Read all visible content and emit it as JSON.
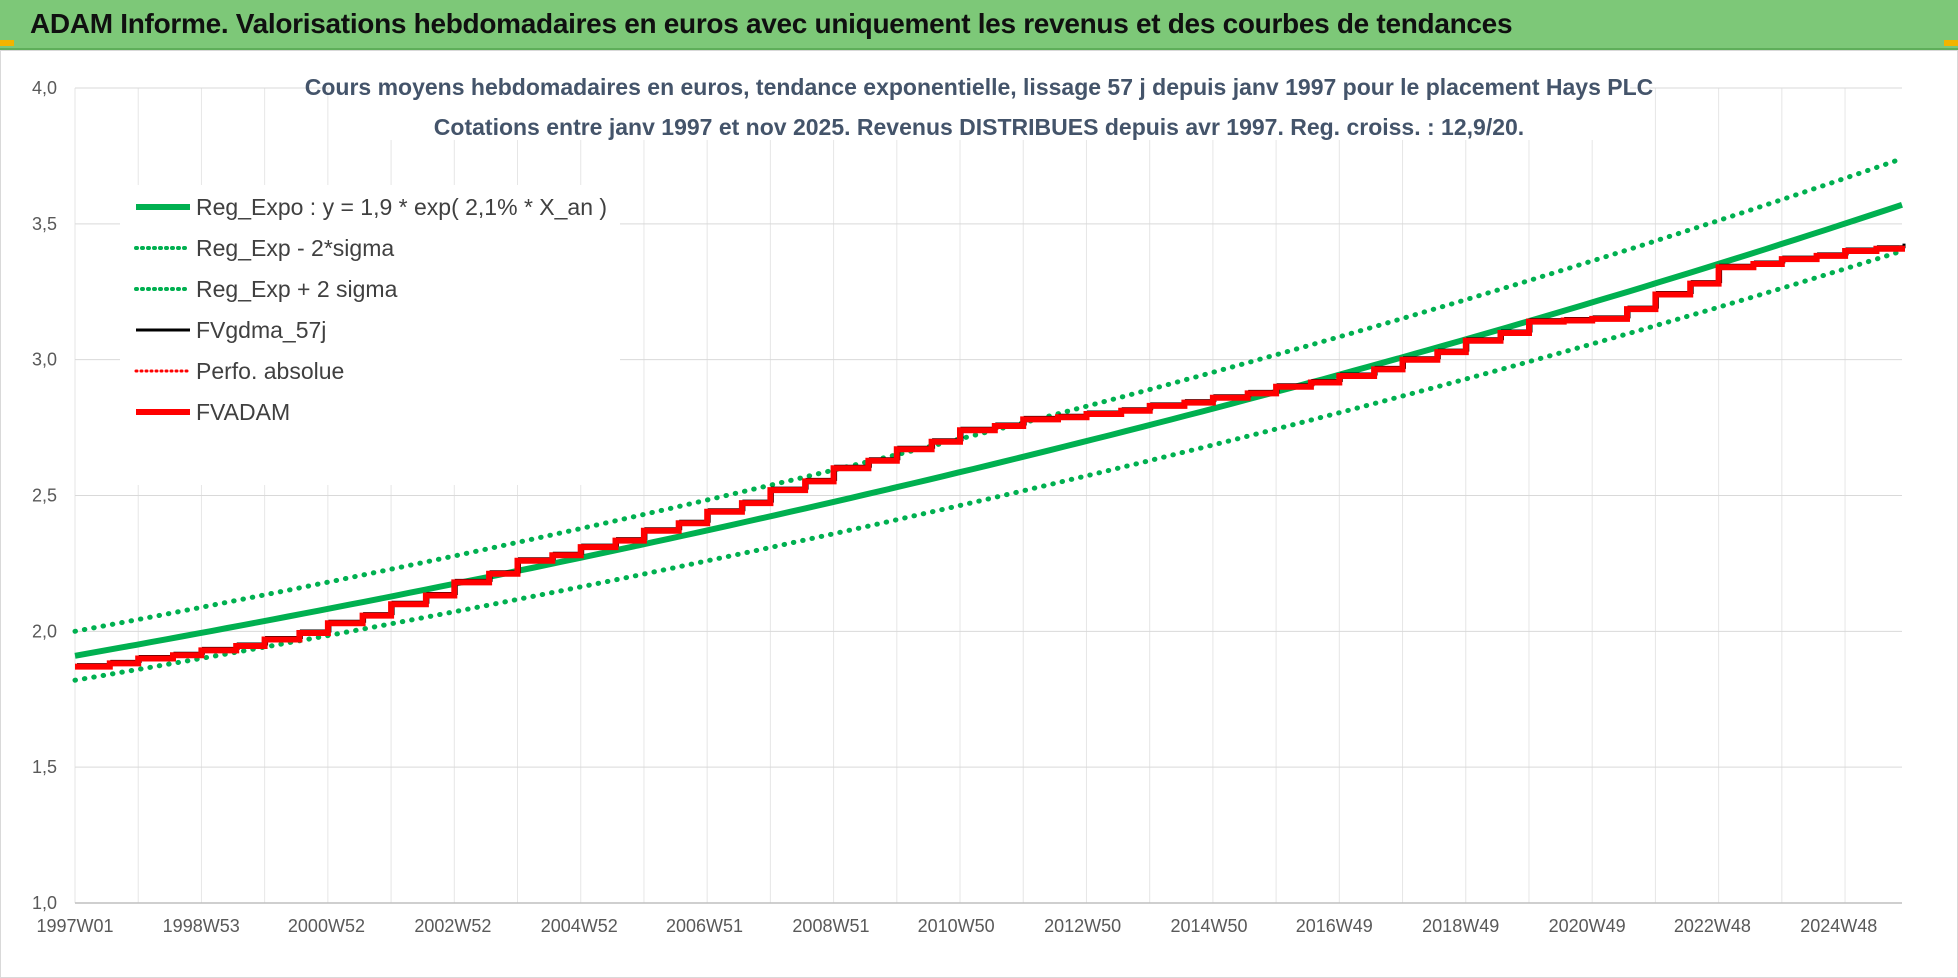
{
  "header": {
    "title": "ADAM Informe. Valorisations hebdomadaires en euros avec uniquement les revenus et des courbes de tendances"
  },
  "colors": {
    "banner": "#7dc878",
    "reg_green": "#00b050",
    "fv_black": "#000000",
    "fvadam_red": "#ff0000",
    "perfo_red": "#ff0000",
    "grid": "#d9d9d9",
    "title": "#44546a"
  },
  "chart_data": {
    "type": "line",
    "title": "Cours moyens hebdomadaires en euros, tendance exponentielle, lissage 57 j depuis janv 1997 pour le placement Hays PLC",
    "subtitle": "Cotations entre janv 1997 et nov 2025. Revenus DISTRIBUES depuis avr 1997. Reg. croiss. : 12,9/20.",
    "xlabel": "",
    "ylabel": "",
    "ylim": [
      1.0,
      4.0
    ],
    "yticks": [
      "1,0",
      "1,5",
      "2,0",
      "2,5",
      "3,0",
      "3,5",
      "4,0"
    ],
    "xlim": [
      "1997W01",
      "2025W48"
    ],
    "xticks": [
      "1997W01",
      "1998W53",
      "2000W52",
      "2002W52",
      "2004W52",
      "2006W51",
      "2008W51",
      "2010W50",
      "2012W50",
      "2014W50",
      "2016W49",
      "2018W49",
      "2020W49",
      "2022W48",
      "2024W48"
    ],
    "grid": true,
    "legend_position": "top-left",
    "series": [
      {
        "name": "Reg_Expo : y = 1,9 * exp( 2,1% *  X_an )",
        "style": "solid-thick",
        "color": "#00b050",
        "x": [
          "1997W01",
          "2025W48"
        ],
        "formula": "1,9*exp(0,021*t)",
        "start": 1.91,
        "end": 3.57
      },
      {
        "name": "Reg_Exp - 2*sigma",
        "style": "dotted",
        "color": "#00b050",
        "x": [
          "1997W01",
          "2025W48"
        ],
        "start": 1.82,
        "end": 3.4
      },
      {
        "name": "Reg_Exp + 2 sigma",
        "style": "dotted",
        "color": "#00b050",
        "x": [
          "1997W01",
          "2025W48"
        ],
        "start": 2.0,
        "end": 3.74
      },
      {
        "name": "FVgdma_57j",
        "style": "solid",
        "color": "#000000"
      },
      {
        "name": "Perfo. absolue",
        "style": "dotted",
        "color": "#ff0000"
      },
      {
        "name": "FVADAM",
        "style": "solid-thick",
        "color": "#ff0000",
        "x": [
          "1997W01",
          "1998W01",
          "1999W01",
          "2000W01",
          "2001W01",
          "2002W01",
          "2003W01",
          "2004W01",
          "2005W01",
          "2006W01",
          "2007W01",
          "2008W01",
          "2009W01",
          "2010W01",
          "2011W01",
          "2012W01",
          "2013W01",
          "2014W01",
          "2015W01",
          "2016W01",
          "2017W01",
          "2018W01",
          "2019W01",
          "2020W01",
          "2021W01",
          "2022W01",
          "2023W01",
          "2024W01",
          "2025W01",
          "2025W48"
        ],
        "values": [
          1.87,
          1.9,
          1.93,
          1.97,
          2.03,
          2.1,
          2.18,
          2.26,
          2.31,
          2.37,
          2.44,
          2.52,
          2.6,
          2.67,
          2.74,
          2.78,
          2.8,
          2.83,
          2.86,
          2.9,
          2.94,
          3.0,
          3.07,
          3.14,
          3.15,
          3.24,
          3.34,
          3.37,
          3.4,
          3.42
        ]
      }
    ]
  }
}
